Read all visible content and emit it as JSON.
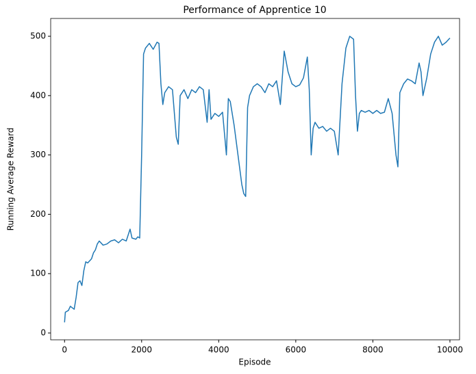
{
  "chart_data": {
    "type": "line",
    "title": "Performance of Apprentice 10",
    "xlabel": "Episode",
    "ylabel": "Running Average Reward",
    "x": [
      0,
      20,
      100,
      150,
      250,
      300,
      350,
      400,
      450,
      500,
      550,
      600,
      700,
      750,
      800,
      850,
      900,
      1000,
      1100,
      1200,
      1300,
      1400,
      1500,
      1600,
      1700,
      1750,
      1850,
      1900,
      1950,
      2000,
      2050,
      2100,
      2200,
      2300,
      2400,
      2450,
      2500,
      2550,
      2600,
      2700,
      2800,
      2900,
      2950,
      3000,
      3100,
      3200,
      3300,
      3400,
      3500,
      3600,
      3700,
      3750,
      3800,
      3900,
      4000,
      4100,
      4200,
      4250,
      4300,
      4400,
      4500,
      4600,
      4650,
      4700,
      4750,
      4800,
      4900,
      5000,
      5100,
      5200,
      5300,
      5400,
      5500,
      5600,
      5700,
      5800,
      5900,
      6000,
      6100,
      6200,
      6300,
      6350,
      6400,
      6450,
      6500,
      6600,
      6700,
      6800,
      6900,
      7000,
      7100,
      7200,
      7300,
      7400,
      7500,
      7550,
      7600,
      7650,
      7700,
      7800,
      7900,
      8000,
      8100,
      8200,
      8300,
      8400,
      8500,
      8600,
      8650,
      8700,
      8800,
      8900,
      9000,
      9100,
      9200,
      9250,
      9300,
      9400,
      9500,
      9600,
      9700,
      9800,
      9900,
      10000
    ],
    "series": [
      {
        "name": "Running Average Reward",
        "color": "#1f77b4",
        "values": [
          18,
          35,
          38,
          45,
          40,
          60,
          85,
          88,
          80,
          105,
          120,
          118,
          125,
          135,
          140,
          150,
          155,
          148,
          150,
          155,
          157,
          152,
          158,
          155,
          175,
          160,
          158,
          162,
          160,
          300,
          470,
          480,
          488,
          478,
          490,
          488,
          420,
          385,
          405,
          415,
          410,
          330,
          318,
          400,
          410,
          395,
          410,
          405,
          415,
          410,
          355,
          410,
          360,
          370,
          365,
          372,
          300,
          395,
          390,
          350,
          300,
          250,
          235,
          230,
          380,
          400,
          415,
          420,
          415,
          405,
          420,
          415,
          425,
          385,
          475,
          440,
          420,
          415,
          418,
          430,
          465,
          410,
          300,
          345,
          355,
          345,
          348,
          340,
          345,
          340,
          300,
          420,
          480,
          500,
          495,
          400,
          340,
          370,
          375,
          372,
          375,
          370,
          375,
          370,
          372,
          395,
          370,
          300,
          280,
          405,
          420,
          428,
          425,
          420,
          455,
          440,
          400,
          430,
          470,
          490,
          500,
          485,
          490,
          497
        ]
      }
    ],
    "xlim": [
      -360,
      10250
    ],
    "ylim": [
      -11.5,
      530
    ],
    "xticks": [
      0,
      2000,
      4000,
      6000,
      8000,
      10000
    ],
    "yticks": [
      0,
      100,
      200,
      300,
      400,
      500
    ]
  }
}
